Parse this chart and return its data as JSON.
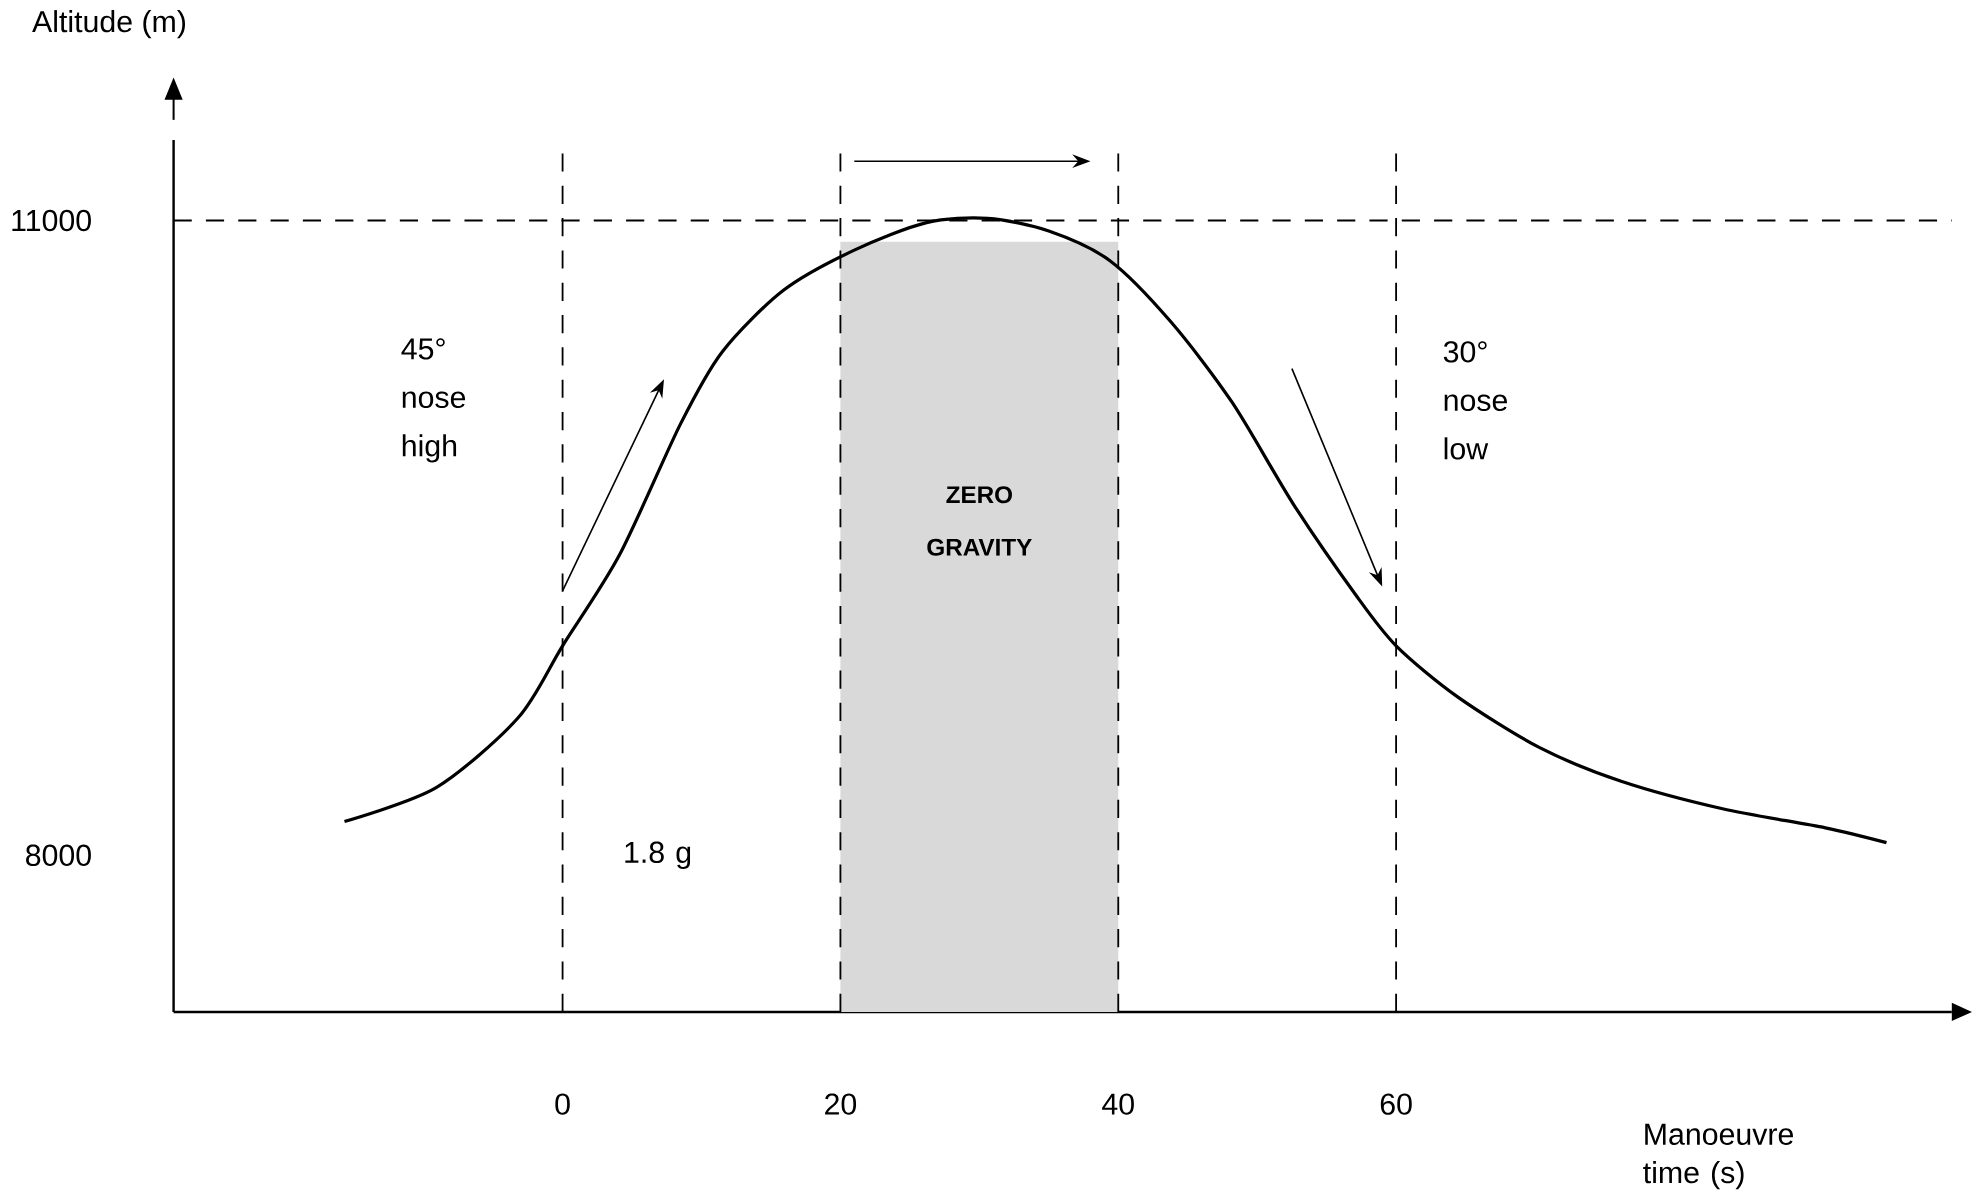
{
  "chart_data": {
    "type": "line",
    "xlabel": "Manoeuvre time (s)",
    "ylabel": "Altitude (m)",
    "x": [
      -15.7,
      -9.1,
      -3.2,
      0,
      4.1,
      8.5,
      11.5,
      15.9,
      21.0,
      26.2,
      30.6,
      35.0,
      39.4,
      43.8,
      48.2,
      52.6,
      57.1,
      60,
      64.4,
      70.3,
      76.2,
      83.5,
      90.9,
      95.3
    ],
    "series": [
      {
        "color": "#000000",
        "values": [
          8160,
          8320,
          8650,
          8990,
          9420,
          10040,
          10380,
          10670,
          10860,
          10990,
          11010,
          10950,
          10810,
          10520,
          10140,
          9660,
          9230,
          8990,
          8750,
          8510,
          8350,
          8220,
          8130,
          8060
        ]
      }
    ],
    "xlim": [
      -28,
      100
    ],
    "ylim": [
      7260,
      11380
    ],
    "xticks": [
      0,
      20,
      40,
      60
    ],
    "yticks": [
      8000,
      11000
    ],
    "grid": false,
    "marker": "none",
    "line_style": "solid",
    "ref_lines": [
      {
        "axis": "x",
        "value": 0,
        "line_style": "dashed"
      },
      {
        "axis": "x",
        "value": 20,
        "line_style": "dashed"
      },
      {
        "axis": "x",
        "value": 40,
        "line_style": "dashed"
      },
      {
        "axis": "x",
        "value": 60,
        "line_style": "dashed"
      },
      {
        "axis": "y",
        "value": 11000,
        "line_style": "dashed"
      }
    ],
    "bands": [
      {
        "axis": "x",
        "from": 20,
        "to": 40,
        "label": "ZERO GRAVITY",
        "color": "#d9d9d9"
      }
    ],
    "annotations": [
      "45° nose high",
      "30° nose low",
      "1.8 g"
    ]
  }
}
